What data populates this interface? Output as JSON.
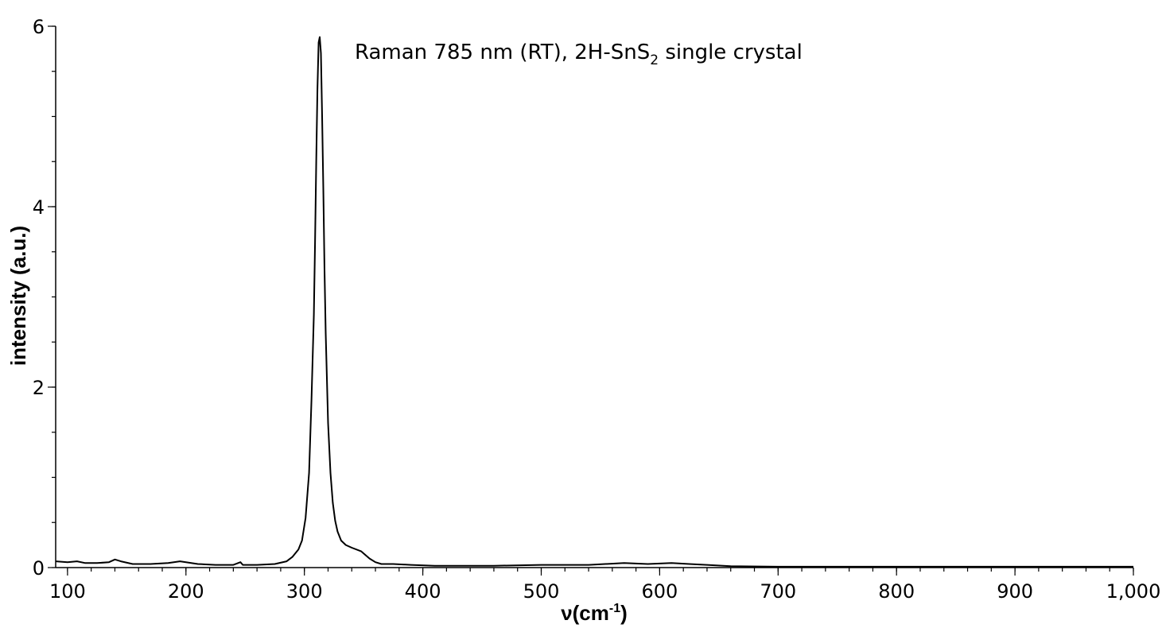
{
  "chart_data": {
    "type": "line",
    "annotation": {
      "text_before": "Raman 785 nm (RT), 2H-SnS",
      "subscript": "2",
      "text_after": " single crystal"
    },
    "xlabel": {
      "base": "ν(cm",
      "sup": "-1",
      "close": ")"
    },
    "ylabel": "intensity (a.u.)",
    "xlim": [
      90,
      1000
    ],
    "ylim": [
      0,
      6
    ],
    "x_ticks": [
      {
        "value": 100,
        "label": "100"
      },
      {
        "value": 200,
        "label": "200"
      },
      {
        "value": 300,
        "label": "300"
      },
      {
        "value": 400,
        "label": "400"
      },
      {
        "value": 500,
        "label": "500"
      },
      {
        "value": 600,
        "label": "600"
      },
      {
        "value": 700,
        "label": "700"
      },
      {
        "value": 800,
        "label": "800"
      },
      {
        "value": 900,
        "label": "900"
      },
      {
        "value": 1000,
        "label": "1,000"
      }
    ],
    "x_minor_step": 20,
    "y_ticks": [
      {
        "value": 0,
        "label": "0"
      },
      {
        "value": 2,
        "label": "2"
      },
      {
        "value": 4,
        "label": "4"
      },
      {
        "value": 6,
        "label": "6"
      }
    ],
    "y_minor_step": 0.5,
    "grid": false,
    "series": [
      {
        "x": [
          90,
          100,
          108,
          115,
          125,
          135,
          140,
          145,
          155,
          170,
          185,
          195,
          200,
          210,
          225,
          240,
          246,
          248,
          250,
          260,
          275,
          285,
          290,
          295,
          298,
          301,
          304,
          306,
          308,
          309,
          310,
          311,
          312,
          313,
          314,
          315,
          316,
          317,
          318,
          320,
          322,
          324,
          326,
          328,
          331,
          335,
          340,
          348,
          355,
          360,
          365,
          375,
          390,
          410,
          430,
          460,
          500,
          540,
          570,
          590,
          610,
          625,
          640,
          660,
          700,
          800,
          900,
          1000
        ],
        "y": [
          0.07,
          0.06,
          0.07,
          0.05,
          0.05,
          0.06,
          0.09,
          0.07,
          0.04,
          0.04,
          0.05,
          0.07,
          0.06,
          0.04,
          0.03,
          0.03,
          0.06,
          0.03,
          0.03,
          0.03,
          0.04,
          0.07,
          0.12,
          0.2,
          0.3,
          0.55,
          1.05,
          1.85,
          2.8,
          3.6,
          4.5,
          5.3,
          5.82,
          5.88,
          5.7,
          5.0,
          4.2,
          3.3,
          2.6,
          1.6,
          1.05,
          0.72,
          0.52,
          0.4,
          0.3,
          0.25,
          0.22,
          0.18,
          0.1,
          0.06,
          0.04,
          0.04,
          0.03,
          0.02,
          0.02,
          0.02,
          0.03,
          0.03,
          0.05,
          0.04,
          0.05,
          0.04,
          0.03,
          0.015,
          0.01,
          0.01,
          0.01,
          0.01
        ]
      }
    ]
  }
}
